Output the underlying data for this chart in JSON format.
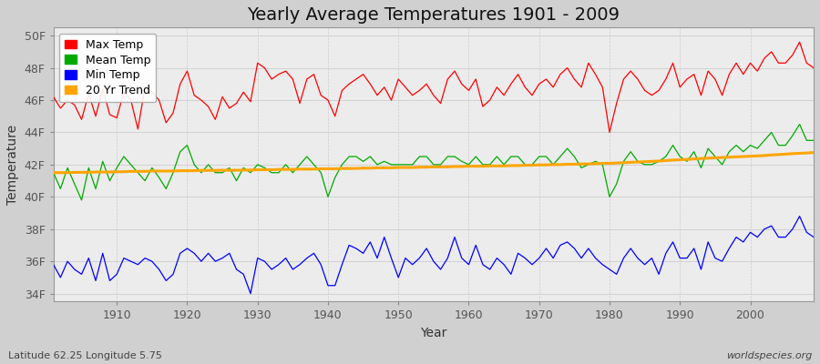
{
  "title": "Yearly Average Temperatures 1901 - 2009",
  "xlabel": "Year",
  "ylabel": "Temperature",
  "footnote_left": "Latitude 62.25 Longitude 5.75",
  "footnote_right": "worldspecies.org",
  "years": [
    1901,
    1902,
    1903,
    1904,
    1905,
    1906,
    1907,
    1908,
    1909,
    1910,
    1911,
    1912,
    1913,
    1914,
    1915,
    1916,
    1917,
    1918,
    1919,
    1920,
    1921,
    1922,
    1923,
    1924,
    1925,
    1926,
    1927,
    1928,
    1929,
    1930,
    1931,
    1932,
    1933,
    1934,
    1935,
    1936,
    1937,
    1938,
    1939,
    1940,
    1941,
    1942,
    1943,
    1944,
    1945,
    1946,
    1947,
    1948,
    1949,
    1950,
    1951,
    1952,
    1953,
    1954,
    1955,
    1956,
    1957,
    1958,
    1959,
    1960,
    1961,
    1962,
    1963,
    1964,
    1965,
    1966,
    1967,
    1968,
    1969,
    1970,
    1971,
    1972,
    1973,
    1974,
    1975,
    1976,
    1977,
    1978,
    1979,
    1980,
    1981,
    1982,
    1983,
    1984,
    1985,
    1986,
    1987,
    1988,
    1989,
    1990,
    1991,
    1992,
    1993,
    1994,
    1995,
    1996,
    1997,
    1998,
    1999,
    2000,
    2001,
    2002,
    2003,
    2004,
    2005,
    2006,
    2007,
    2008,
    2009
  ],
  "max_temp": [
    46.2,
    45.5,
    46.0,
    45.7,
    44.8,
    46.4,
    45.0,
    46.7,
    45.1,
    44.9,
    46.5,
    46.0,
    44.2,
    46.8,
    46.5,
    46.0,
    44.6,
    45.2,
    47.0,
    47.8,
    46.3,
    46.0,
    45.6,
    44.8,
    46.2,
    45.5,
    45.8,
    46.5,
    45.9,
    48.3,
    48.0,
    47.3,
    47.6,
    47.8,
    47.3,
    45.8,
    47.3,
    47.6,
    46.3,
    46.0,
    45.0,
    46.6,
    47.0,
    47.3,
    47.6,
    47.0,
    46.3,
    46.8,
    46.0,
    47.3,
    46.8,
    46.3,
    46.6,
    47.0,
    46.3,
    45.8,
    47.3,
    47.8,
    47.0,
    46.6,
    47.3,
    45.6,
    46.0,
    46.8,
    46.3,
    47.0,
    47.6,
    46.8,
    46.3,
    47.0,
    47.3,
    46.8,
    47.6,
    48.0,
    47.3,
    46.8,
    48.3,
    47.6,
    46.8,
    44.0,
    45.8,
    47.3,
    47.8,
    47.3,
    46.6,
    46.3,
    46.6,
    47.3,
    48.3,
    46.8,
    47.3,
    47.6,
    46.3,
    47.8,
    47.3,
    46.3,
    47.6,
    48.3,
    47.6,
    48.3,
    47.8,
    48.6,
    49.0,
    48.3,
    48.3,
    48.8,
    49.6,
    48.3,
    48.0
  ],
  "mean_temp": [
    41.5,
    40.5,
    41.8,
    40.8,
    39.8,
    41.8,
    40.5,
    42.2,
    41.0,
    41.8,
    42.5,
    42.0,
    41.5,
    41.0,
    41.8,
    41.2,
    40.5,
    41.5,
    42.8,
    43.2,
    42.0,
    41.5,
    42.0,
    41.5,
    41.5,
    41.8,
    41.0,
    41.8,
    41.5,
    42.0,
    41.8,
    41.5,
    41.5,
    42.0,
    41.5,
    42.0,
    42.5,
    42.0,
    41.5,
    40.0,
    41.2,
    42.0,
    42.5,
    42.5,
    42.2,
    42.5,
    42.0,
    42.2,
    42.0,
    42.0,
    42.0,
    42.0,
    42.5,
    42.5,
    42.0,
    42.0,
    42.5,
    42.5,
    42.2,
    42.0,
    42.5,
    42.0,
    42.0,
    42.5,
    42.0,
    42.5,
    42.5,
    42.0,
    42.0,
    42.5,
    42.5,
    42.0,
    42.5,
    43.0,
    42.5,
    41.8,
    42.0,
    42.2,
    42.0,
    40.0,
    40.8,
    42.2,
    42.8,
    42.2,
    42.0,
    42.0,
    42.2,
    42.5,
    43.2,
    42.5,
    42.2,
    42.8,
    41.8,
    43.0,
    42.5,
    42.0,
    42.8,
    43.2,
    42.8,
    43.2,
    43.0,
    43.5,
    44.0,
    43.2,
    43.2,
    43.8,
    44.5,
    43.5,
    43.5
  ],
  "min_temp": [
    35.8,
    35.0,
    36.0,
    35.5,
    35.2,
    36.2,
    34.8,
    36.5,
    34.8,
    35.2,
    36.2,
    36.0,
    35.8,
    36.2,
    36.0,
    35.5,
    34.8,
    35.2,
    36.5,
    36.8,
    36.5,
    36.0,
    36.5,
    36.0,
    36.2,
    36.5,
    35.5,
    35.2,
    34.0,
    36.2,
    36.0,
    35.5,
    35.8,
    36.2,
    35.5,
    35.8,
    36.2,
    36.5,
    35.8,
    34.5,
    34.5,
    35.8,
    37.0,
    36.8,
    36.5,
    37.2,
    36.2,
    37.5,
    36.2,
    35.0,
    36.2,
    35.8,
    36.2,
    36.8,
    36.0,
    35.5,
    36.2,
    37.5,
    36.2,
    35.8,
    37.0,
    35.8,
    35.5,
    36.2,
    35.8,
    35.2,
    36.5,
    36.2,
    35.8,
    36.2,
    36.8,
    36.2,
    37.0,
    37.2,
    36.8,
    36.2,
    36.8,
    36.2,
    35.8,
    35.5,
    35.2,
    36.2,
    36.8,
    36.2,
    35.8,
    36.2,
    35.2,
    36.5,
    37.2,
    36.2,
    36.2,
    36.8,
    35.5,
    37.2,
    36.2,
    36.0,
    36.8,
    37.5,
    37.2,
    37.8,
    37.5,
    38.0,
    38.2,
    37.5,
    37.5,
    38.0,
    38.8,
    37.8,
    37.5
  ],
  "trend_temp": [
    41.5,
    41.5,
    41.5,
    41.52,
    41.52,
    41.52,
    41.54,
    41.54,
    41.54,
    41.56,
    41.56,
    41.58,
    41.58,
    41.58,
    41.6,
    41.6,
    41.6,
    41.6,
    41.62,
    41.62,
    41.62,
    41.64,
    41.64,
    41.64,
    41.65,
    41.65,
    41.65,
    41.66,
    41.66,
    41.68,
    41.68,
    41.68,
    41.7,
    41.7,
    41.7,
    41.72,
    41.72,
    41.72,
    41.74,
    41.74,
    41.74,
    41.76,
    41.76,
    41.76,
    41.78,
    41.78,
    41.8,
    41.8,
    41.8,
    41.82,
    41.82,
    41.82,
    41.84,
    41.84,
    41.86,
    41.86,
    41.86,
    41.88,
    41.88,
    41.9,
    41.9,
    41.9,
    41.92,
    41.92,
    41.92,
    41.94,
    41.94,
    41.96,
    41.96,
    41.98,
    41.98,
    42.0,
    42.0,
    42.02,
    42.02,
    42.04,
    42.04,
    42.06,
    42.08,
    42.08,
    42.1,
    42.12,
    42.14,
    42.16,
    42.18,
    42.2,
    42.22,
    42.25,
    42.28,
    42.3,
    42.32,
    42.35,
    42.38,
    42.4,
    42.42,
    42.44,
    42.46,
    42.48,
    42.5,
    42.52,
    42.54,
    42.56,
    42.6,
    42.62,
    42.65,
    42.68,
    42.7,
    42.72,
    42.75
  ],
  "ylim": [
    33.5,
    50.5
  ],
  "yticks": [
    34,
    36,
    38,
    40,
    42,
    44,
    46,
    48,
    50
  ],
  "ytick_labels": [
    "34F",
    "36F",
    "38F",
    "40F",
    "42F",
    "44F",
    "46F",
    "48F",
    "50F"
  ],
  "xticks": [
    1910,
    1920,
    1930,
    1940,
    1950,
    1960,
    1970,
    1980,
    1990,
    2000
  ],
  "xlim_left": 1901,
  "xlim_right": 2009,
  "max_color": "#ff0000",
  "mean_color": "#00aa00",
  "min_color": "#0000ff",
  "trend_color": "#ffa500",
  "grid_color": "#cccccc",
  "fig_bg": "#d0d0d0",
  "plot_bg": "#ececec",
  "title_fontsize": 14,
  "axis_label_fontsize": 10,
  "tick_fontsize": 9,
  "legend_fontsize": 9
}
